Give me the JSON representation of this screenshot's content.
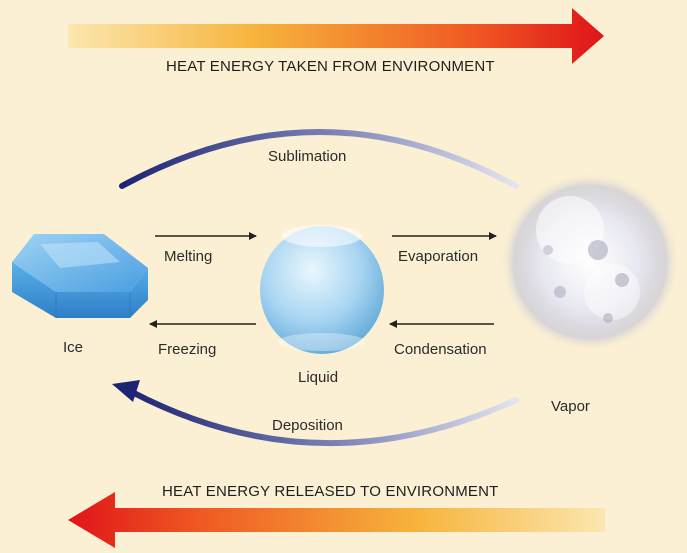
{
  "banners": {
    "top": "HEAT ENERGY TAKEN FROM ENVIRONMENT",
    "bottom": "HEAT ENERGY RELEASED TO ENVIRONMENT"
  },
  "states": {
    "solid": "Ice",
    "liquid": "Liquid",
    "gas": "Vapor"
  },
  "processes": {
    "sublimation": "Sublimation",
    "melting": "Melting",
    "evaporation": "Evaporation",
    "freezing": "Freezing",
    "condensation": "Condensation",
    "deposition": "Deposition"
  },
  "colors": {
    "background": "#fbf0d3",
    "arrow_hot": "#e0141a",
    "arrow_warm": "#f5b23a",
    "curve_dark": "#232a7a",
    "curve_light": "#d6d9ea",
    "ice": "#5ab0e8",
    "liquid": "#a9d6f2",
    "vapor": "#e8e8f2"
  }
}
